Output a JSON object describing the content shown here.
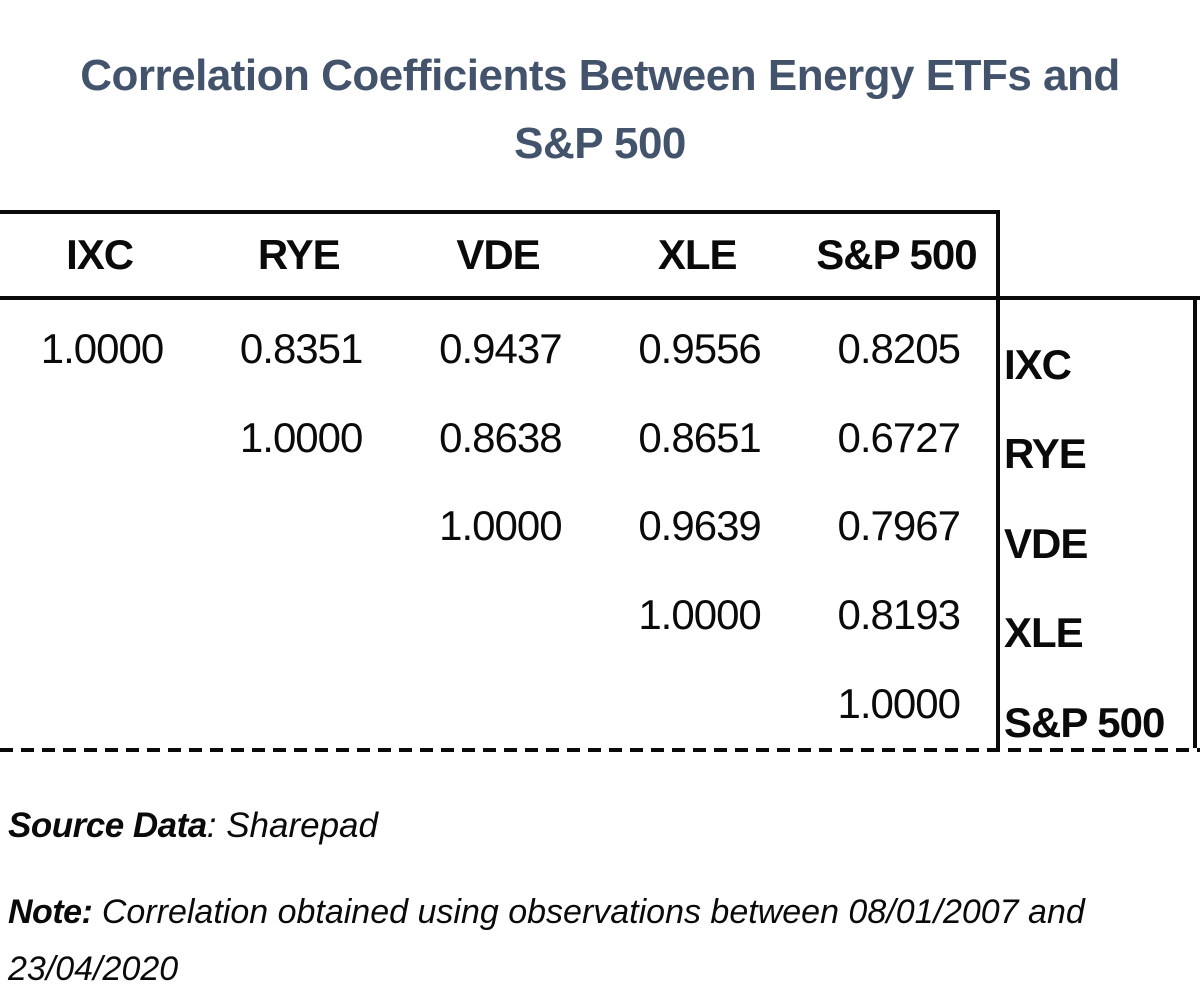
{
  "title": {
    "line1": "Correlation Coefficients Between Energy ETFs and",
    "line2": "S&P 500"
  },
  "colors": {
    "title_text": "#42536B",
    "body_text": "#0a0a0a",
    "border": "#0a0a0a",
    "background": "#ffffff"
  },
  "table": {
    "column_headers": [
      "IXC",
      "RYE",
      "VDE",
      "XLE",
      "S&P 500"
    ],
    "row_labels": [
      "IXC",
      "RYE",
      "VDE",
      "XLE",
      "S&P 500"
    ],
    "rows": [
      [
        "1.0000",
        "0.8351",
        "0.9437",
        "0.9556",
        "0.8205"
      ],
      [
        "",
        "1.0000",
        "0.8638",
        "0.8651",
        "0.6727"
      ],
      [
        "",
        "",
        "1.0000",
        "0.9639",
        "0.7967"
      ],
      [
        "",
        "",
        "",
        "1.0000",
        "0.8193"
      ],
      [
        "",
        "",
        "",
        "",
        "1.0000"
      ]
    ]
  },
  "footer": {
    "source_label": "Source Data",
    "source_rest": ": Sharepad",
    "note_label": "Note:",
    "note_text": " Correlation obtained using observations between 08/01/2007 and 23/04/2020"
  },
  "chart_data": {
    "type": "table",
    "title": "Correlation Coefficients Between Energy ETFs and S&P 500",
    "columns": [
      "IXC",
      "RYE",
      "VDE",
      "XLE",
      "S&P 500"
    ],
    "rows": [
      "IXC",
      "RYE",
      "VDE",
      "XLE",
      "S&P 500"
    ],
    "matrix": [
      [
        1.0,
        0.8351,
        0.9437,
        0.9556,
        0.8205
      ],
      [
        null,
        1.0,
        0.8638,
        0.8651,
        0.6727
      ],
      [
        null,
        null,
        1.0,
        0.9639,
        0.7967
      ],
      [
        null,
        null,
        null,
        1.0,
        0.8193
      ],
      [
        null,
        null,
        null,
        null,
        1.0
      ]
    ],
    "source": "Sharepad",
    "note": "Correlation obtained using observations between 08/01/2007 and 23/04/2020",
    "layout": "upper-triangular correlation matrix; column headers on top, row labels on right; dashed bottom rule"
  }
}
